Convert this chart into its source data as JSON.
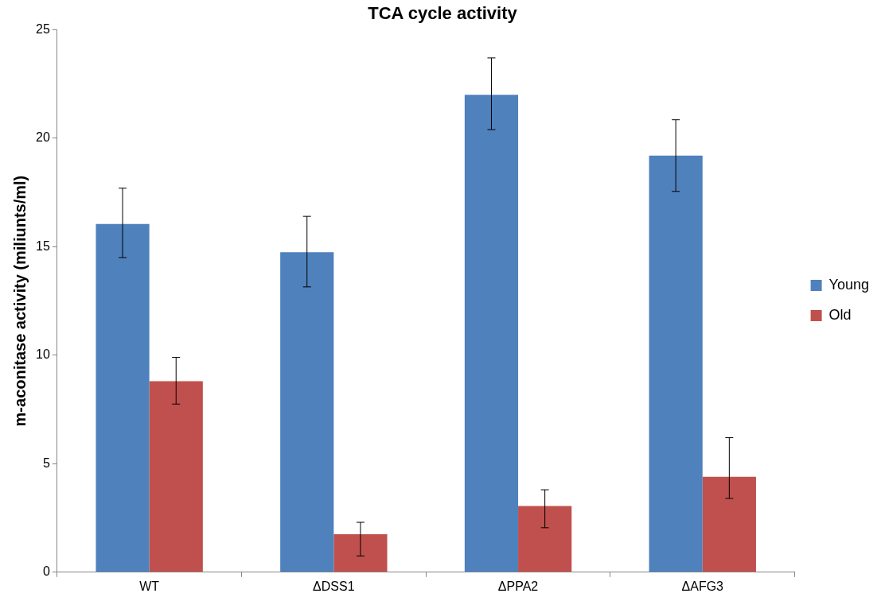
{
  "chart_data": {
    "type": "bar",
    "title": "TCA cycle activity",
    "ylabel": "m-aconitase activity (miliunts/ml)",
    "categories": [
      "WT",
      "ΔDSS1",
      "ΔPPA2",
      "ΔAFG3"
    ],
    "series": [
      {
        "name": "Young",
        "color": "#4f81bd",
        "values": [
          16.05,
          14.75,
          22.0,
          19.2
        ],
        "errors": [
          [
            14.5,
            17.7
          ],
          [
            13.15,
            16.4
          ],
          [
            20.4,
            23.7
          ],
          [
            17.55,
            20.85
          ]
        ]
      },
      {
        "name": "Old",
        "color": "#c0504d",
        "values": [
          8.8,
          1.75,
          3.05,
          4.4
        ],
        "errors": [
          [
            7.75,
            9.9
          ],
          [
            0.75,
            2.3
          ],
          [
            2.05,
            3.8
          ],
          [
            3.4,
            6.2
          ]
        ]
      }
    ],
    "ylim": [
      0,
      25
    ],
    "yticks": [
      0,
      5,
      10,
      15,
      20,
      25
    ],
    "grid": false,
    "legend": "right"
  }
}
